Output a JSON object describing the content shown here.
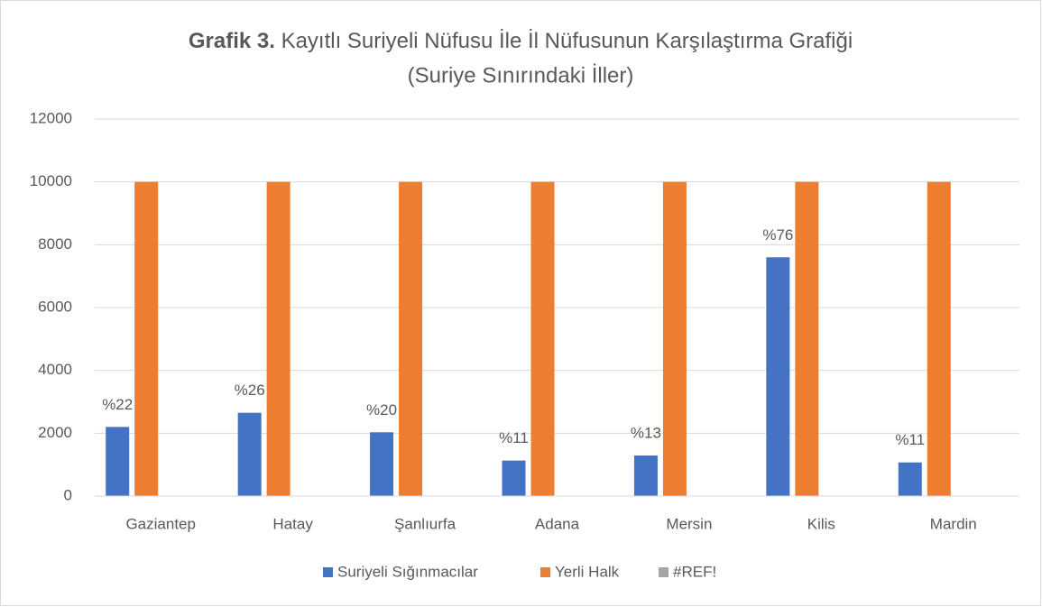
{
  "chart_data": {
    "type": "bar",
    "title_bold": "Grafik 3.",
    "title": "Kayıtlı Suriyeli Nüfusu İle İl Nüfusunun Karşılaştırma Grafiği",
    "subtitle": "(Suriye Sınırındaki İller)",
    "categories": [
      "Gaziantep",
      "Hatay",
      "Şanlıurfa",
      "Adana",
      "Mersin",
      "Kilis",
      "Mardin"
    ],
    "series": [
      {
        "name": "Suriyeli Sığınmacılar",
        "color": "#4472c4",
        "values": [
          2200,
          2650,
          2030,
          1130,
          1290,
          7600,
          1070
        ],
        "value_labels": [
          "%22",
          "%26",
          "%20",
          "%11",
          "%13",
          "%76",
          "%11"
        ]
      },
      {
        "name": "Yerli Halk",
        "color": "#ed7d31",
        "values": [
          10000,
          10000,
          10000,
          10000,
          10000,
          10000,
          10000
        ]
      },
      {
        "name": "#REF!",
        "color": "#a5a5a5",
        "values": [
          null,
          null,
          null,
          null,
          null,
          null,
          null
        ]
      }
    ],
    "ylim": [
      0,
      12000
    ],
    "yticks": [
      0,
      2000,
      4000,
      6000,
      8000,
      10000,
      12000
    ],
    "grid": true,
    "legend": "bottom"
  }
}
